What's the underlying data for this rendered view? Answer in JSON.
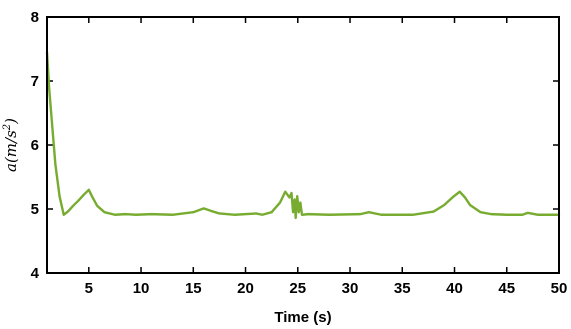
{
  "chart_data": {
    "type": "line",
    "title": "",
    "xlabel": "Time (s)",
    "ylabel": "a(m/s^2)",
    "xlim": [
      1,
      50
    ],
    "ylim": [
      4,
      8
    ],
    "xticks": [
      5,
      10,
      15,
      20,
      25,
      30,
      35,
      40,
      45,
      50
    ],
    "yticks": [
      4,
      5,
      6,
      7,
      8
    ],
    "grid": false,
    "legend": "none",
    "series": [
      {
        "color": "#77AC30",
        "x": [
          1.0,
          1.2,
          1.5,
          1.8,
          2.2,
          2.6,
          3.0,
          3.5,
          4.0,
          4.5,
          5.0,
          5.3,
          5.8,
          6.5,
          7.5,
          8.5,
          9.5,
          11,
          13,
          15,
          16,
          16.7,
          17.5,
          19,
          21,
          21.6,
          22.5,
          23.3,
          23.8,
          24.2,
          24.4,
          24.55,
          24.7,
          24.8,
          24.95,
          25.1,
          25.25,
          25.4,
          26,
          28,
          31,
          31.8,
          33,
          36,
          38,
          39,
          39.8,
          40.5,
          41,
          41.5,
          42.5,
          43.5,
          45,
          46.5,
          47,
          48,
          50
        ],
        "values": [
          7.45,
          6.9,
          6.3,
          5.7,
          5.2,
          4.91,
          4.96,
          5.05,
          5.13,
          5.22,
          5.3,
          5.2,
          5.05,
          4.95,
          4.91,
          4.92,
          4.91,
          4.92,
          4.91,
          4.95,
          5.01,
          4.97,
          4.93,
          4.91,
          4.93,
          4.91,
          4.95,
          5.1,
          5.27,
          5.18,
          5.25,
          4.95,
          5.15,
          4.86,
          5.2,
          4.95,
          5.1,
          4.91,
          4.92,
          4.91,
          4.92,
          4.95,
          4.91,
          4.91,
          4.96,
          5.06,
          5.18,
          5.27,
          5.18,
          5.06,
          4.95,
          4.92,
          4.91,
          4.91,
          4.94,
          4.91,
          4.91
        ]
      }
    ]
  }
}
